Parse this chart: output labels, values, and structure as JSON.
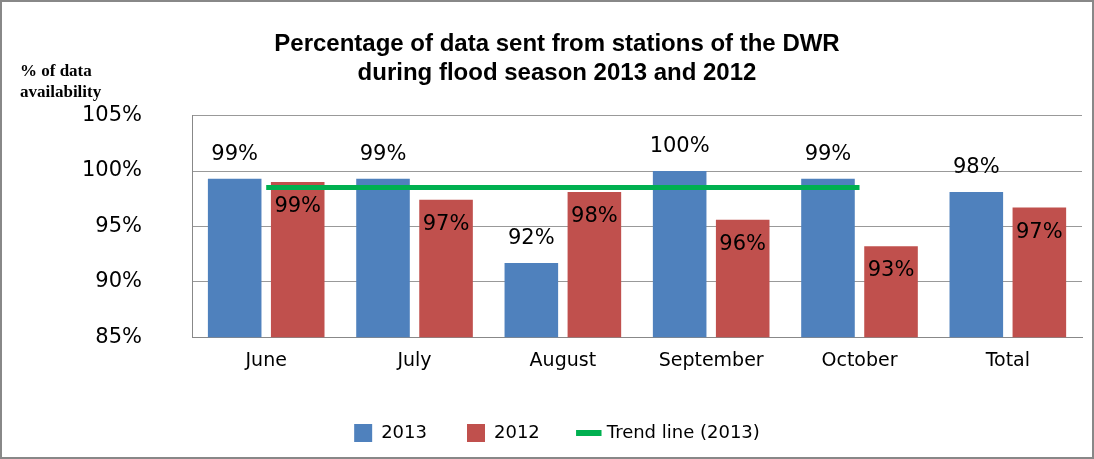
{
  "chart_data": {
    "type": "bar",
    "title": [
      "Percentage of data sent from stations of the DWR",
      "during flood season 2013 and 2012"
    ],
    "ylabel": "% of data availability",
    "categories": [
      "June",
      "July",
      "August",
      "September",
      "October",
      "Total"
    ],
    "series": [
      {
        "name": "2013",
        "color": "#4f81bd",
        "values": [
          99.3,
          99.3,
          91.7,
          100.0,
          99.3,
          98.1
        ],
        "value_labels": [
          "99%",
          "99%",
          "92%",
          "100%",
          "99%",
          "98%"
        ]
      },
      {
        "name": "2012",
        "color": "#c0504d",
        "values": [
          99.0,
          97.4,
          98.1,
          95.6,
          93.2,
          96.7
        ],
        "value_labels": [
          "99%",
          "97%",
          "98%",
          "96%",
          "93%",
          "97%"
        ]
      },
      {
        "name": "Trend line (2013)",
        "type": "line",
        "color": "#00b050",
        "values": [
          98.5,
          98.5,
          98.5,
          98.5,
          98.5,
          null
        ],
        "marker": "none"
      }
    ],
    "ylim": [
      85,
      105
    ],
    "yticks": [
      {
        "value": 85,
        "label": "85%"
      },
      {
        "value": 90,
        "label": "90%"
      },
      {
        "value": 95,
        "label": "95%"
      },
      {
        "value": 100,
        "label": "100%"
      },
      {
        "value": 105,
        "label": "105%"
      }
    ],
    "grid": "y",
    "legend": "bottom"
  }
}
